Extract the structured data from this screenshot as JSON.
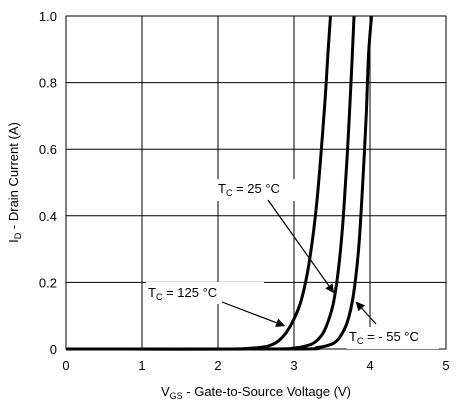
{
  "chart_data": {
    "type": "line",
    "xlabel": {
      "main": "V",
      "sub": "GS",
      "rest": " - Gate-to-Source Voltage (V)"
    },
    "ylabel": {
      "main": "I",
      "sub": "D",
      "rest": " - Drain Current (A)"
    },
    "xlim": [
      0,
      5
    ],
    "ylim": [
      0,
      1.0
    ],
    "x_ticks": [
      0,
      1,
      2,
      3,
      4,
      5
    ],
    "x_tick_labels": [
      "0",
      "1",
      "2",
      "3",
      "4",
      "5"
    ],
    "y_ticks": [
      0,
      0.2,
      0.4,
      0.6,
      0.8,
      1.0
    ],
    "y_tick_labels": [
      "0",
      "0.2",
      "0.4",
      "0.6",
      "0.8",
      "1.0"
    ],
    "grid": true,
    "series": [
      {
        "name": "T_C = 125 °C",
        "label": {
          "main": "T",
          "sub": "C",
          "rest": " = 125 °C"
        },
        "points": [
          [
            0,
            0
          ],
          [
            2.0,
            0.0
          ],
          [
            2.4,
            0.002
          ],
          [
            2.6,
            0.006
          ],
          [
            2.7,
            0.012
          ],
          [
            2.8,
            0.025
          ],
          [
            2.9,
            0.05
          ],
          [
            3.0,
            0.09
          ],
          [
            3.1,
            0.15
          ],
          [
            3.2,
            0.26
          ],
          [
            3.3,
            0.44
          ],
          [
            3.4,
            0.72
          ],
          [
            3.45,
            0.9
          ],
          [
            3.48,
            1.0
          ]
        ],
        "arrow_at": [
          2.87,
          0.07
        ]
      },
      {
        "name": "T_C = 25 °C",
        "label": {
          "main": "T",
          "sub": "C",
          "rest": " = 25 °C"
        },
        "points": [
          [
            0,
            0
          ],
          [
            2.6,
            0.0
          ],
          [
            3.0,
            0.003
          ],
          [
            3.2,
            0.012
          ],
          [
            3.3,
            0.025
          ],
          [
            3.4,
            0.055
          ],
          [
            3.5,
            0.12
          ],
          [
            3.55,
            0.18
          ],
          [
            3.6,
            0.27
          ],
          [
            3.65,
            0.4
          ],
          [
            3.7,
            0.58
          ],
          [
            3.75,
            0.8
          ],
          [
            3.79,
            1.0
          ]
        ],
        "arrow_at": [
          3.52,
          0.17
        ]
      },
      {
        "name": "T_C = - 55 °C",
        "label": {
          "main": "T",
          "sub": "C",
          "rest": " = - 55 °C"
        },
        "points": [
          [
            0,
            0
          ],
          [
            3.0,
            0.0
          ],
          [
            3.3,
            0.004
          ],
          [
            3.5,
            0.015
          ],
          [
            3.6,
            0.035
          ],
          [
            3.7,
            0.08
          ],
          [
            3.78,
            0.16
          ],
          [
            3.85,
            0.3
          ],
          [
            3.9,
            0.48
          ],
          [
            3.95,
            0.7
          ],
          [
            3.98,
            0.88
          ],
          [
            4.02,
            1.0
          ]
        ],
        "arrow_at": [
          3.82,
          0.14
        ]
      }
    ]
  }
}
